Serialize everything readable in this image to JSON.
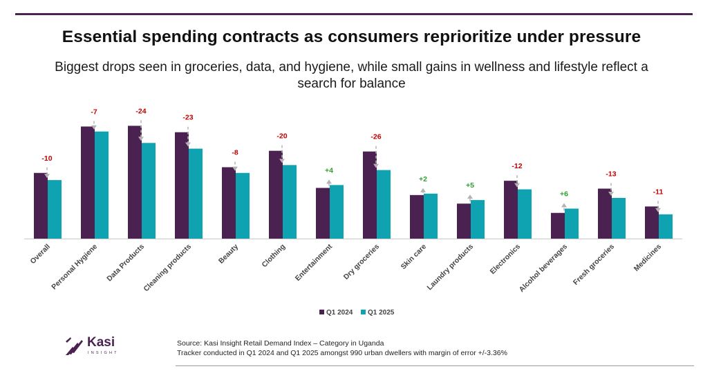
{
  "header": {
    "title": "Essential spending contracts as consumers reprioritize under pressure",
    "subtitle": "Biggest drops seen in groceries, data, and hygiene, while small gains in wellness and lifestyle reflect a search for balance"
  },
  "chart_data": {
    "type": "bar",
    "categories": [
      "Overall",
      "Personal Hygiene",
      "Data Products",
      "Cleaning products",
      "Beauty",
      "Clothing",
      "Entertainment",
      "Dry groceries",
      "Skin care",
      "Laundry products",
      "Electronics",
      "Alcohol beverages",
      "Fresh groceries",
      "Medicines"
    ],
    "series": [
      {
        "name": "Q1 2024",
        "color": "#4b2151",
        "values": [
          92,
          157,
          158,
          149,
          100,
          123,
          71,
          122,
          61,
          49,
          81,
          36,
          70,
          45
        ]
      },
      {
        "name": "Q1 2025",
        "color": "#0fa3b1",
        "values": [
          82,
          150,
          134,
          126,
          92,
          103,
          75,
          96,
          63,
          54,
          69,
          42,
          57,
          34
        ]
      }
    ],
    "changes": [
      "-10",
      "-7",
      "-24",
      "-23",
      "-8",
      "-20",
      "+4",
      "-26",
      "+2",
      "+5",
      "-12",
      "+6",
      "-13",
      "-11"
    ],
    "colors": {
      "negative": "#c00000",
      "positive": "#2ca02c",
      "arrow": "#b3b3b3"
    },
    "ylim": [
      0,
      170
    ],
    "grid": false,
    "legend": "bottom-center"
  },
  "legend": [
    {
      "label": "Q1 2024",
      "color": "#4b2151"
    },
    {
      "label": "Q1 2025",
      "color": "#0fa3b1"
    }
  ],
  "footer": {
    "logo_name": "Kasi",
    "logo_sub": "INSIGHT",
    "source_line1": "Source: Kasi Insight Retail Demand Index – Category in Uganda",
    "source_line2": "Tracker conducted in Q1 2024 and Q1 2025 amongst 990 urban dwellers with margin of error +/-3.36%"
  }
}
